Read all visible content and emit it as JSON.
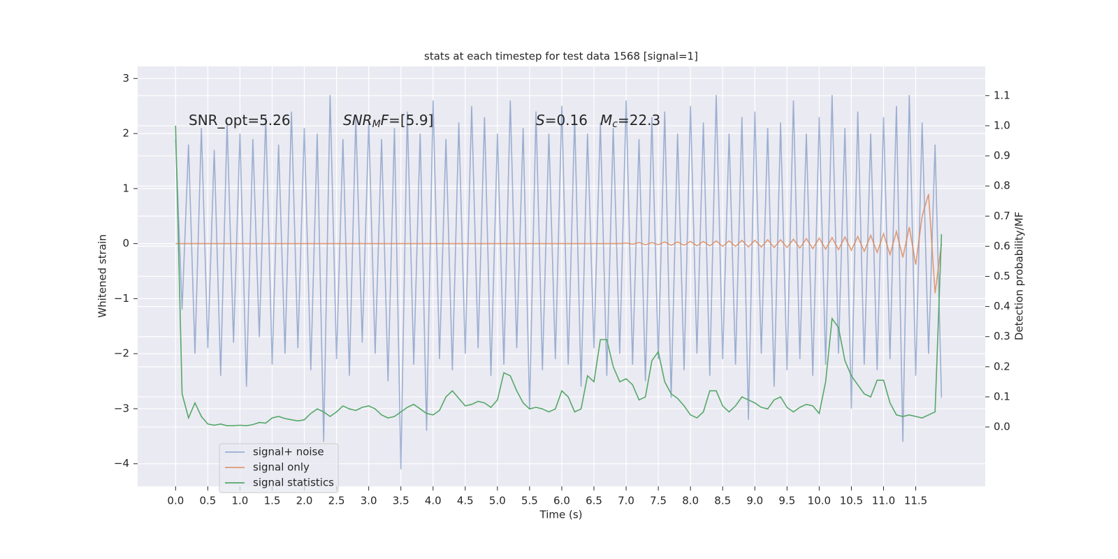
{
  "chart_data": {
    "type": "line",
    "title": "stats at each timestep for test data 1568 [signal=1]",
    "xlabel": "Time (s)",
    "ylabel": "Whitened strain",
    "y2label": "Detection probability/MF",
    "xlim": [
      -0.59,
      12.58
    ],
    "ylim": [
      -4.41,
      3.22
    ],
    "y2lim": [
      -0.197,
      1.197
    ],
    "xticks": [
      {
        "value": 0,
        "label": "0.0"
      },
      {
        "value": 0.5,
        "label": "0.5"
      },
      {
        "value": 1,
        "label": "1.0"
      },
      {
        "value": 1.5,
        "label": "1.5"
      },
      {
        "value": 2,
        "label": "2.0"
      },
      {
        "value": 2.5,
        "label": "2.5"
      },
      {
        "value": 3,
        "label": "3.0"
      },
      {
        "value": 3.5,
        "label": "3.5"
      },
      {
        "value": 4,
        "label": "4.0"
      },
      {
        "value": 4.5,
        "label": "4.5"
      },
      {
        "value": 5,
        "label": "5.0"
      },
      {
        "value": 5.5,
        "label": "5.5"
      },
      {
        "value": 6,
        "label": "6.0"
      },
      {
        "value": 6.5,
        "label": "6.5"
      },
      {
        "value": 7,
        "label": "7.0"
      },
      {
        "value": 7.5,
        "label": "7.5"
      },
      {
        "value": 8,
        "label": "8.0"
      },
      {
        "value": 8.5,
        "label": "8.5"
      },
      {
        "value": 9,
        "label": "9.0"
      },
      {
        "value": 9.5,
        "label": "9.5"
      },
      {
        "value": 10,
        "label": "10.0"
      },
      {
        "value": 10.5,
        "label": "10.5"
      },
      {
        "value": 11,
        "label": "11.0"
      },
      {
        "value": 11.5,
        "label": "11.5"
      }
    ],
    "yticks": [
      {
        "value": -4,
        "label": "−4"
      },
      {
        "value": -3,
        "label": "−3"
      },
      {
        "value": -2,
        "label": "−2"
      },
      {
        "value": -1,
        "label": "−1"
      },
      0,
      1,
      2,
      3
    ],
    "y2ticks": [
      {
        "value": 0,
        "label": "0.0"
      },
      {
        "value": 0.1,
        "label": "0.1"
      },
      {
        "value": 0.2,
        "label": "0.2"
      },
      {
        "value": 0.3,
        "label": "0.3"
      },
      {
        "value": 0.4,
        "label": "0.4"
      },
      {
        "value": 0.5,
        "label": "0.5"
      },
      {
        "value": 0.6,
        "label": "0.6"
      },
      {
        "value": 0.7,
        "label": "0.7"
      },
      {
        "value": 0.8,
        "label": "0.8"
      },
      {
        "value": 0.9,
        "label": "0.9"
      },
      {
        "value": 1,
        "label": "1.0"
      },
      {
        "value": 1.1,
        "label": "1.1"
      }
    ],
    "grid": true,
    "legend": "lower left",
    "annotations": [
      {
        "parts": [
          {
            "text": "SNR_opt=5.26",
            "style": "normal"
          }
        ]
      },
      {
        "parts": [
          {
            "text": "SNR",
            "style": "italic"
          },
          {
            "text": "M",
            "style": "sub"
          },
          {
            "text": "F",
            "style": "italic"
          },
          {
            "text": "=[5.9]",
            "style": "normal"
          }
        ]
      },
      {
        "parts": [
          {
            "text": "S",
            "style": "italic"
          },
          {
            "text": "=0.16",
            "style": "normal"
          }
        ]
      },
      {
        "parts": [
          {
            "text": "M",
            "style": "italic"
          },
          {
            "text": "c",
            "style": "sub"
          },
          {
            "text": "=22.3",
            "style": "normal"
          }
        ]
      }
    ],
    "x": [
      0,
      0.1,
      0.2,
      0.3,
      0.4,
      0.5,
      0.6,
      0.7,
      0.8,
      0.9,
      1,
      1.1,
      1.2,
      1.3,
      1.4,
      1.5,
      1.6,
      1.7,
      1.8,
      1.9,
      2,
      2.1,
      2.2,
      2.3,
      2.4,
      2.5,
      2.6,
      2.7,
      2.8,
      2.9,
      3,
      3.1,
      3.2,
      3.3,
      3.4,
      3.5,
      3.6,
      3.7,
      3.8,
      3.9,
      4,
      4.1,
      4.2,
      4.3,
      4.4,
      4.5,
      4.6,
      4.7,
      4.8,
      4.9,
      5,
      5.1,
      5.2,
      5.3,
      5.4,
      5.5,
      5.6,
      5.7,
      5.8,
      5.9,
      6,
      6.1,
      6.2,
      6.3,
      6.4,
      6.5,
      6.6,
      6.7,
      6.8,
      6.9,
      7,
      7.1,
      7.2,
      7.3,
      7.4,
      7.5,
      7.6,
      7.7,
      7.8,
      7.9,
      8,
      8.1,
      8.2,
      8.3,
      8.4,
      8.5,
      8.6,
      8.7,
      8.8,
      8.9,
      9,
      9.1,
      9.2,
      9.3,
      9.4,
      9.5,
      9.6,
      9.7,
      9.8,
      9.9,
      10,
      10.1,
      10.2,
      10.3,
      10.4,
      10.5,
      10.6,
      10.7,
      10.8,
      10.9,
      11,
      11.1,
      11.2,
      11.3,
      11.4,
      11.5,
      11.6,
      11.7,
      11.8,
      11.9
    ],
    "series": [
      {
        "name": "signal+ noise",
        "color": "#4c72b0",
        "opacity": 0.5,
        "values": [
          1.9,
          -1.2,
          1.8,
          -2.0,
          2.1,
          -1.9,
          1.7,
          -2.4,
          2.2,
          -1.8,
          2.0,
          -2.6,
          1.9,
          -1.7,
          2.3,
          -2.2,
          1.8,
          -2.0,
          2.4,
          -1.9,
          2.1,
          -2.3,
          2.0,
          -3.6,
          2.7,
          -2.1,
          1.9,
          -2.4,
          2.3,
          -1.8,
          2.2,
          -2.0,
          1.9,
          -2.5,
          2.1,
          -4.1,
          2.4,
          -2.2,
          2.0,
          -3.4,
          2.6,
          -2.1,
          1.9,
          -2.3,
          2.2,
          -2.0,
          2.5,
          -1.9,
          2.3,
          -2.4,
          2.0,
          -2.2,
          2.6,
          -1.9,
          2.1,
          -3.0,
          2.4,
          -2.3,
          2.0,
          -2.1,
          2.5,
          -2.2,
          2.3,
          -2.6,
          2.0,
          -1.9,
          2.2,
          -2.4,
          2.1,
          -2.0,
          2.6,
          -2.2,
          1.9,
          -2.5,
          2.3,
          -2.1,
          2.4,
          -2.8,
          2.0,
          -2.3,
          2.5,
          -2.0,
          2.2,
          -2.4,
          2.7,
          -2.1,
          2.0,
          -2.2,
          2.3,
          -3.2,
          2.4,
          -2.0,
          2.1,
          -2.6,
          2.2,
          -2.3,
          2.6,
          -2.1,
          2.0,
          -2.4,
          2.3,
          -2.2,
          2.7,
          -2.0,
          2.1,
          -3.0,
          2.4,
          -2.2,
          2.0,
          -2.3,
          2.3,
          -2.1,
          2.5,
          -3.6,
          2.7,
          -2.4,
          2.2,
          -2.0,
          1.8,
          -2.8
        ]
      },
      {
        "name": "signal only",
        "color": "#dd8452",
        "opacity": 0.8,
        "values": [
          0,
          0,
          0,
          0,
          0,
          0,
          0,
          0,
          0,
          0,
          0,
          0,
          0,
          0,
          0,
          0,
          0,
          0,
          0,
          0,
          0,
          0,
          0,
          0,
          0,
          0,
          0,
          0,
          0,
          0,
          0,
          0,
          0,
          0,
          0,
          0,
          0,
          0,
          0,
          0,
          0,
          0,
          0,
          0,
          0,
          0,
          0,
          0,
          0,
          0,
          0,
          0,
          0,
          0,
          0,
          0,
          0,
          0,
          0,
          0,
          0,
          0,
          0,
          0,
          0,
          0,
          0,
          0,
          0,
          0,
          0.01,
          -0.01,
          0.02,
          -0.02,
          0.02,
          -0.02,
          0.03,
          -0.03,
          0.03,
          -0.03,
          0.04,
          -0.04,
          0.04,
          -0.04,
          0.05,
          -0.05,
          0.05,
          -0.05,
          0.06,
          -0.06,
          0.06,
          -0.06,
          0.07,
          -0.07,
          0.07,
          -0.07,
          0.08,
          -0.08,
          0.09,
          -0.09,
          0.1,
          -0.1,
          0.11,
          -0.11,
          0.12,
          -0.12,
          0.13,
          -0.14,
          0.15,
          -0.16,
          0.18,
          -0.2,
          0.22,
          -0.25,
          0.3,
          -0.38,
          0.5,
          0.9,
          -0.9,
          0
        ]
      },
      {
        "name": "signal statistics",
        "color": "#55a868",
        "axis": "y2",
        "values": [
          1.0,
          0.11,
          0.03,
          0.08,
          0.035,
          0.01,
          0.006,
          0.01,
          0.004,
          0.004,
          0.006,
          0.004,
          0.008,
          0.015,
          0.013,
          0.03,
          0.035,
          0.028,
          0.024,
          0.02,
          0.024,
          0.045,
          0.06,
          0.05,
          0.035,
          0.05,
          0.07,
          0.06,
          0.055,
          0.065,
          0.07,
          0.06,
          0.04,
          0.03,
          0.035,
          0.05,
          0.065,
          0.075,
          0.06,
          0.045,
          0.04,
          0.055,
          0.1,
          0.12,
          0.095,
          0.07,
          0.075,
          0.085,
          0.08,
          0.065,
          0.09,
          0.18,
          0.17,
          0.12,
          0.08,
          0.06,
          0.065,
          0.06,
          0.05,
          0.06,
          0.12,
          0.1,
          0.05,
          0.06,
          0.17,
          0.15,
          0.29,
          0.29,
          0.2,
          0.15,
          0.16,
          0.14,
          0.09,
          0.1,
          0.22,
          0.25,
          0.15,
          0.11,
          0.095,
          0.07,
          0.04,
          0.03,
          0.05,
          0.12,
          0.12,
          0.07,
          0.05,
          0.07,
          0.1,
          0.09,
          0.08,
          0.065,
          0.06,
          0.09,
          0.1,
          0.065,
          0.05,
          0.065,
          0.075,
          0.07,
          0.045,
          0.15,
          0.36,
          0.33,
          0.22,
          0.17,
          0.14,
          0.11,
          0.1,
          0.155,
          0.155,
          0.08,
          0.04,
          0.035,
          0.04,
          0.035,
          0.03,
          0.04,
          0.05,
          0.64
        ]
      }
    ]
  }
}
